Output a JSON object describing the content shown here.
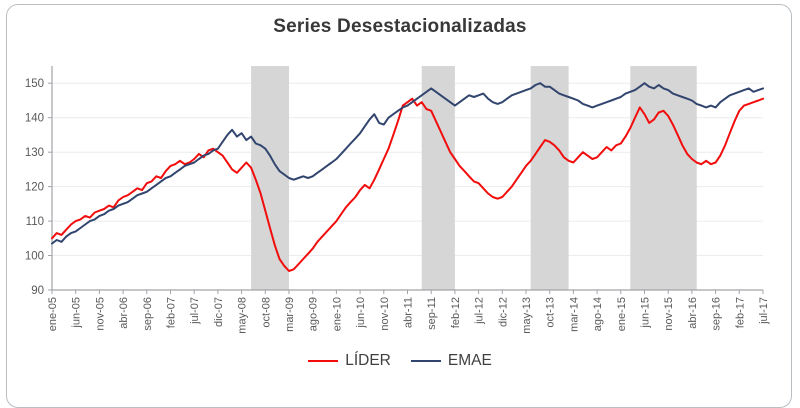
{
  "figure": {
    "title": "Series Desestacionalizadas"
  },
  "legend": [
    {
      "label": "LÍDER",
      "color": "#f20d0d"
    },
    {
      "label": "EMAE",
      "color": "#32456f"
    }
  ],
  "chart_data": {
    "type": "line",
    "title": "Series Desestacionalizadas",
    "xlabel": "",
    "ylabel": "",
    "grid": true,
    "legend_position": "bottom",
    "ylim": [
      90,
      155
    ],
    "yticks": [
      90,
      100,
      110,
      120,
      130,
      140,
      150
    ],
    "x_tick_labels": [
      "ene-05",
      "jun-05",
      "nov-05",
      "abr-06",
      "sep-06",
      "feb-07",
      "jul-07",
      "dic-07",
      "may-08",
      "oct-08",
      "mar-09",
      "ago-09",
      "ene-10",
      "jun-10",
      "nov-10",
      "abr-11",
      "sep-11",
      "feb-12",
      "jul-12",
      "dic-12",
      "may-13",
      "oct-13",
      "mar-14",
      "ago-14",
      "ene-15",
      "jun-15",
      "nov-15",
      "abr-16",
      "sep-16",
      "feb-17",
      "jul-17"
    ],
    "months_per_tick": 5,
    "band_color": "#d6d6d6",
    "axis_color": "#a0a4a8",
    "gridline_color": "#ececec",
    "tick_label_color": "#595959",
    "recession_bands_month_idx": [
      [
        42,
        50
      ],
      [
        78,
        85
      ],
      [
        101,
        109
      ],
      [
        122,
        136
      ]
    ],
    "series": [
      {
        "name": "LÍDER",
        "color": "#f20d0d",
        "values": [
          105,
          106.5,
          106,
          107.5,
          109,
          110,
          110.5,
          111.5,
          111,
          112.5,
          113,
          113.5,
          114.5,
          114,
          116,
          117,
          117.5,
          118.5,
          119.5,
          119,
          121,
          121.5,
          123,
          122.5,
          124.5,
          126,
          126.5,
          127.5,
          126.5,
          127,
          128,
          129.5,
          128.5,
          130.5,
          131,
          130,
          129,
          127,
          125,
          124,
          125.5,
          127,
          125.5,
          122,
          118,
          113,
          108,
          103,
          99,
          97,
          95.5,
          96,
          97.5,
          99,
          100.5,
          102,
          104,
          105.5,
          107,
          108.5,
          110,
          112,
          114,
          115.5,
          117,
          119,
          120.5,
          119.5,
          122,
          125,
          128,
          131,
          135,
          139,
          143.5,
          144.5,
          145.5,
          143.5,
          144.5,
          142.5,
          142,
          139,
          136,
          133,
          130,
          128,
          126,
          124.5,
          123,
          121.5,
          121,
          119.5,
          118,
          117,
          116.5,
          117,
          118.5,
          120,
          122,
          124,
          126,
          127.5,
          129.5,
          131.5,
          133.5,
          133,
          132,
          130.5,
          128.5,
          127.5,
          127,
          128.5,
          130,
          129,
          128,
          128.5,
          130,
          131.5,
          130.5,
          132,
          132.5,
          134.5,
          137,
          140,
          143,
          141,
          138.5,
          139.5,
          141.5,
          142,
          140.5,
          138,
          135,
          132,
          129.5,
          128,
          127,
          126.5,
          127.5,
          126.5,
          127,
          129,
          132,
          135.5,
          139,
          142,
          143.5,
          144,
          144.5,
          145,
          145.5
        ]
      },
      {
        "name": "EMAE",
        "color": "#32456f",
        "values": [
          103.5,
          104.5,
          104,
          105.5,
          106.5,
          107,
          108,
          109,
          110,
          110.5,
          111.5,
          112,
          113,
          113.5,
          114.5,
          115,
          115.5,
          116.5,
          117.5,
          118,
          118.5,
          119.5,
          120.5,
          121.5,
          122.5,
          123,
          124,
          125,
          126,
          126.5,
          127,
          128,
          129,
          129.5,
          130.5,
          131,
          133,
          135,
          136.5,
          134.5,
          135.5,
          133.5,
          134.5,
          132.5,
          132,
          131,
          129,
          126.5,
          124.5,
          123.5,
          122.5,
          122,
          122.5,
          123,
          122.5,
          123,
          124,
          125,
          126,
          127,
          128,
          129.5,
          131,
          132.5,
          134,
          135.5,
          137.5,
          139.5,
          141,
          138.5,
          138,
          140,
          141,
          142,
          143,
          143.5,
          144.5,
          145.5,
          146.5,
          147.5,
          148.5,
          147.5,
          146.5,
          145.5,
          144.5,
          143.5,
          144.5,
          145.5,
          146.5,
          146,
          146.5,
          147,
          145.5,
          144.5,
          144,
          144.5,
          145.5,
          146.5,
          147,
          147.5,
          148,
          148.5,
          149.5,
          150,
          149,
          149,
          148,
          147,
          146.5,
          146,
          145.5,
          145,
          144,
          143.5,
          143,
          143.5,
          144,
          144.5,
          145,
          145.5,
          146,
          147,
          147.5,
          148,
          149,
          150,
          149,
          148.5,
          149.5,
          148.5,
          148,
          147,
          146.5,
          146,
          145.5,
          145,
          144,
          143.5,
          143,
          143.5,
          143,
          144.5,
          145.5,
          146.5,
          147,
          147.5,
          148,
          148.5,
          147.5,
          148,
          148.5
        ]
      }
    ]
  }
}
